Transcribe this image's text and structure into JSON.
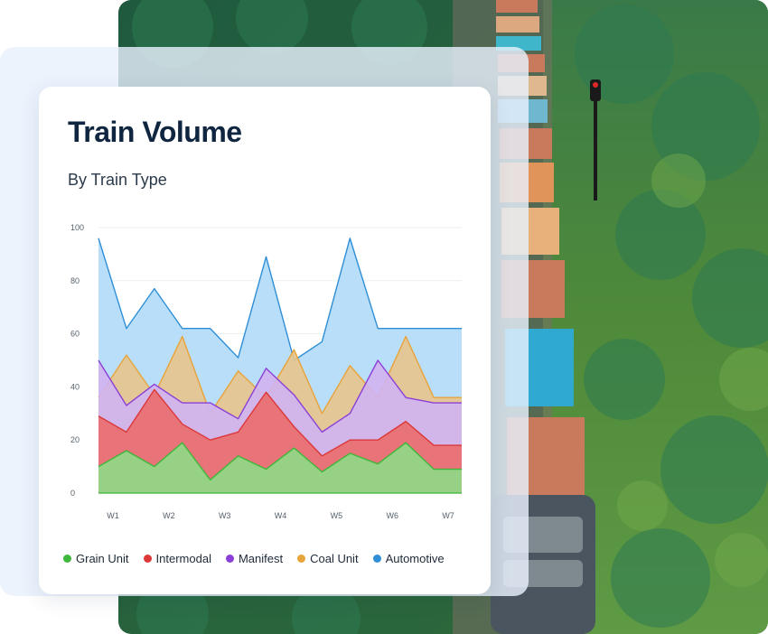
{
  "card": {
    "title": "Train Volume",
    "subtitle": "By Train Type"
  },
  "chart_data": {
    "type": "area",
    "stacked": true,
    "x": [
      "W1",
      "",
      "W2",
      "",
      "W3",
      "",
      "W4",
      "",
      "W5",
      "",
      "W6",
      "",
      "W7",
      ""
    ],
    "tick_labels": [
      "W1",
      "W2",
      "W3",
      "W4",
      "W5",
      "W6",
      "W7"
    ],
    "ylim": [
      0,
      100
    ],
    "yticks": [
      0,
      20,
      40,
      60,
      80,
      100
    ],
    "grid": true,
    "legend_position": "bottom",
    "series": [
      {
        "name": "Grain Unit",
        "color": "#3db83a",
        "fill": "#8ed987",
        "cumulative": [
          10,
          16,
          10,
          19,
          5,
          14,
          9,
          17,
          8,
          15,
          11,
          19,
          9,
          9
        ]
      },
      {
        "name": "Intermodal",
        "color": "#dc3838",
        "fill": "#e96e6e",
        "cumulative": [
          29,
          23,
          39,
          26,
          20,
          23,
          38,
          25,
          14,
          20,
          20,
          27,
          18,
          18
        ]
      },
      {
        "name": "Manifest",
        "color": "#8b3fd6",
        "fill": "#d0b3f0",
        "cumulative": [
          50,
          33,
          41,
          34,
          34,
          28,
          47,
          37,
          23,
          30,
          50,
          36,
          34,
          34
        ]
      },
      {
        "name": "Coal Unit",
        "color": "#e8a33a",
        "fill": "#e6c48d",
        "cumulative": [
          36,
          52,
          37,
          59,
          30,
          46,
          36,
          54,
          30,
          48,
          36,
          59,
          36,
          36
        ]
      },
      {
        "name": "Automotive",
        "color": "#2f8fd6",
        "fill": "#b3dbfa",
        "cumulative": [
          96,
          62,
          77,
          62,
          62,
          51,
          89,
          50,
          57,
          96,
          62,
          62,
          62,
          62
        ]
      }
    ]
  }
}
